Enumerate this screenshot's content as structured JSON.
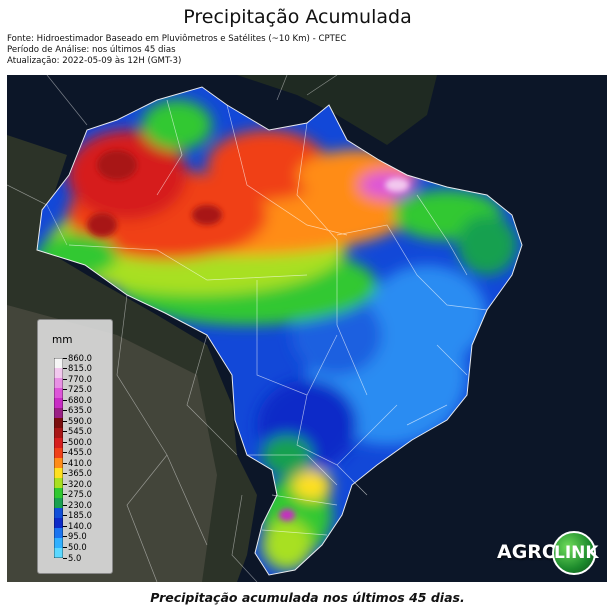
{
  "title": "Precipitação Acumulada",
  "meta": {
    "source": "Fonte: Hidroestimador Baseado em Pluviômetros e Satélites (~10 Km) - CPTEC",
    "period": "Período de Análise: nos últimos 45 dias",
    "updated": "Atualização: 2022-05-09 às 12H (GMT-3)"
  },
  "legend": {
    "unit": "mm",
    "ticks": [
      "860.0",
      "815.0",
      "770.0",
      "725.0",
      "680.0",
      "635.0",
      "590.0",
      "545.0",
      "500.0",
      "455.0",
      "410.0",
      "365.0",
      "320.0",
      "275.0",
      "230.0",
      "185.0",
      "140.0",
      "95.0",
      "50.0",
      "5.0"
    ],
    "colors": [
      "#f6f6f6",
      "#f2c8ee",
      "#e890e4",
      "#dd55d8",
      "#c82cc4",
      "#9a1f84",
      "#7a0e0e",
      "#a81616",
      "#d61e1e",
      "#f04018",
      "#ff8c18",
      "#ffe020",
      "#a8e020",
      "#30c830",
      "#18a050",
      "#104ed8",
      "#0c2ac8",
      "#1a74f0",
      "#30b0ff",
      "#5cd8ff"
    ]
  },
  "logo": {
    "left": "AGRO",
    "right": "LINK"
  },
  "caption": "Precipitação acumulada nos últimos 45 dias."
}
